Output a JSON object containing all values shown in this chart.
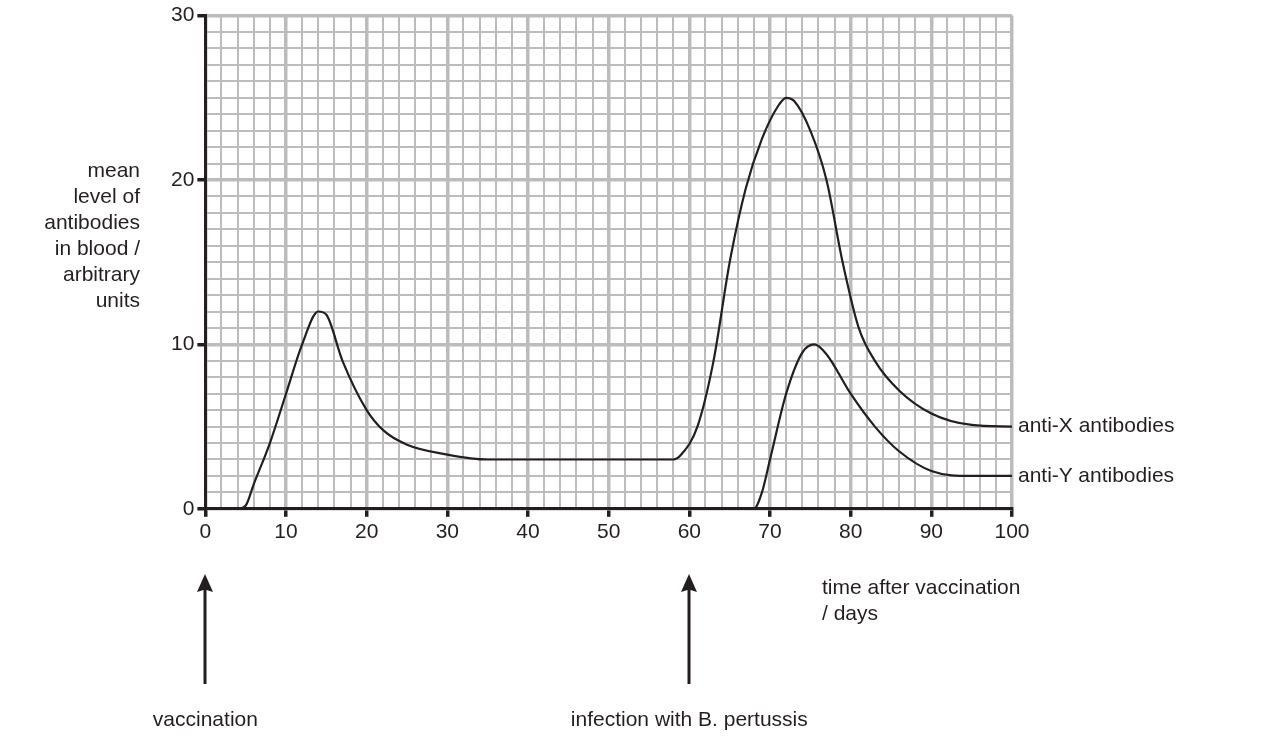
{
  "chart_data": {
    "type": "line",
    "xlabel": "time after vaccination / days",
    "ylabel": "mean level of antibodies in blood / arbitrary units",
    "xlim": [
      0,
      100
    ],
    "ylim": [
      0,
      30
    ],
    "xticks": [
      0,
      {
        "value": 2,
        "label": null
      },
      {
        "value": 4,
        "label": null
      },
      {
        "value": 6,
        "label": null
      },
      {
        "value": 8,
        "label": null
      },
      10,
      {
        "value": 12,
        "label": null
      },
      {
        "value": 14,
        "label": null
      },
      {
        "value": 16,
        "label": null
      },
      {
        "value": 18,
        "label": null
      },
      20,
      {
        "value": 22,
        "label": null
      },
      {
        "value": 24,
        "label": null
      },
      {
        "value": 26,
        "label": null
      },
      {
        "value": 28,
        "label": null
      },
      30,
      {
        "value": 32,
        "label": null
      },
      {
        "value": 34,
        "label": null
      },
      {
        "value": 36,
        "label": null
      },
      {
        "value": 38,
        "label": null
      },
      40,
      {
        "value": 42,
        "label": null
      },
      {
        "value": 44,
        "label": null
      },
      {
        "value": 46,
        "label": null
      },
      {
        "value": 48,
        "label": null
      },
      50,
      {
        "value": 52,
        "label": null
      },
      {
        "value": 54,
        "label": null
      },
      {
        "value": 56,
        "label": null
      },
      {
        "value": 58,
        "label": null
      },
      60,
      {
        "value": 62,
        "label": null
      },
      {
        "value": 64,
        "label": null
      },
      {
        "value": 66,
        "label": null
      },
      {
        "value": 68,
        "label": null
      },
      70,
      {
        "value": 72,
        "label": null
      },
      {
        "value": 74,
        "label": null
      },
      {
        "value": 76,
        "label": null
      },
      {
        "value": 78,
        "label": null
      },
      80,
      {
        "value": 82,
        "label": null
      },
      {
        "value": 84,
        "label": null
      },
      {
        "value": 86,
        "label": null
      },
      {
        "value": 88,
        "label": null
      },
      90,
      {
        "value": 92,
        "label": null
      },
      {
        "value": 94,
        "label": null
      },
      {
        "value": 96,
        "label": null
      },
      {
        "value": 98,
        "label": null
      },
      100
    ],
    "yticks": [
      0,
      {
        "value": 1,
        "label": null
      },
      {
        "value": 2,
        "label": null
      },
      {
        "value": 3,
        "label": null
      },
      {
        "value": 4,
        "label": null
      },
      {
        "value": 5,
        "label": null
      },
      {
        "value": 6,
        "label": null
      },
      {
        "value": 7,
        "label": null
      },
      {
        "value": 8,
        "label": null
      },
      {
        "value": 9,
        "label": null
      },
      10,
      {
        "value": 11,
        "label": null
      },
      {
        "value": 12,
        "label": null
      },
      {
        "value": 13,
        "label": null
      },
      {
        "value": 14,
        "label": null
      },
      {
        "value": 15,
        "label": null
      },
      {
        "value": 16,
        "label": null
      },
      {
        "value": 17,
        "label": null
      },
      {
        "value": 18,
        "label": null
      },
      {
        "value": 19,
        "label": null
      },
      20,
      {
        "value": 21,
        "label": null
      },
      {
        "value": 22,
        "label": null
      },
      {
        "value": 23,
        "label": null
      },
      {
        "value": 24,
        "label": null
      },
      {
        "value": 25,
        "label": null
      },
      {
        "value": 26,
        "label": null
      },
      {
        "value": 27,
        "label": null
      },
      {
        "value": 28,
        "label": null
      },
      {
        "value": 29,
        "label": null
      },
      30
    ],
    "grid": true,
    "legend": false,
    "marker": "none",
    "line_style": "solid",
    "series": [
      {
        "name": "anti-X antibodies",
        "color": "#231f20",
        "x": [
          0,
          4,
          5,
          6,
          8,
          10,
          12,
          14,
          15,
          17,
          20,
          22,
          25,
          30,
          35,
          40,
          50,
          58,
          59,
          61,
          63,
          65,
          67,
          69,
          71,
          72,
          73,
          75,
          77,
          79,
          81,
          83,
          86,
          90,
          95,
          100
        ],
        "values": [
          0,
          0,
          0.2,
          1.5,
          4,
          7,
          10,
          12,
          11.8,
          9,
          6,
          4.8,
          3.9,
          3.3,
          3,
          3,
          3,
          3,
          3.3,
          5,
          9,
          15,
          19.5,
          22.5,
          24.5,
          25,
          24.8,
          23,
          20,
          15,
          11,
          9,
          7.2,
          5.8,
          5.1,
          5
        ]
      },
      {
        "name": "anti-Y antibodies",
        "color": "#231f20",
        "x": [
          0,
          68,
          69,
          70,
          72,
          74,
          75.5,
          77,
          80,
          83,
          86,
          90,
          95,
          100
        ],
        "values": [
          0,
          0,
          1,
          3,
          7,
          9.5,
          10,
          9.4,
          7,
          5,
          3.5,
          2.3,
          2,
          2
        ]
      }
    ],
    "annotations": [
      "vaccination",
      "infection with B. pertussis"
    ]
  }
}
